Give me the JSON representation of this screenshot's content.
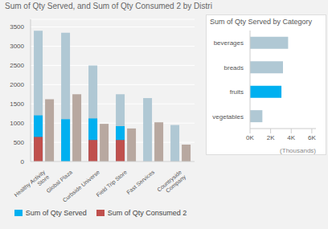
{
  "chart_data": [
    {
      "type": "bar",
      "title": "Sum of Qty Served, and Sum of Qty Consumed 2 by Distri",
      "categories": [
        "Healthy Activity\nStore",
        "Global Plaza",
        "Curbside Universe",
        "Field Trip Store",
        "Fast Services",
        "Countryside\nCompany"
      ],
      "series": [
        {
          "color": "#b0c8d4",
          "values": [
            3400,
            3350,
            2500,
            1750,
            1650,
            950
          ]
        },
        {
          "name": "Sum of Qty Served",
          "color": "#00b0f0",
          "values": [
            1200,
            1100,
            1120,
            920,
            0,
            0
          ]
        },
        {
          "name": "Sum of Qty Consumed 2",
          "color": "#c0504d",
          "values": [
            640,
            0,
            560,
            560,
            0,
            0
          ]
        },
        {
          "color": "#b8a8a0",
          "values": [
            1620,
            1750,
            980,
            860,
            1020,
            440
          ]
        }
      ],
      "ylim": [
        0,
        3700
      ],
      "yticks": [
        0,
        500,
        1000,
        1500,
        2000,
        2500,
        3000,
        3500
      ],
      "grid": true,
      "legend": "bottom"
    },
    {
      "type": "bar",
      "orientation": "horizontal",
      "title": "Sum of Qty Served by Category",
      "categories": [
        "beverages",
        "breads",
        "fruits",
        "vegetables"
      ],
      "values": [
        3700,
        3200,
        3050,
        1200
      ],
      "colors": [
        "#b0c8d4",
        "#b0c8d4",
        "#00b0f0",
        "#b0c8d4"
      ],
      "xlim": [
        0,
        6400
      ],
      "xticks": [
        {
          "value": 0,
          "label": "0K"
        },
        {
          "value": 2000,
          "label": "2K"
        },
        {
          "value": 4000,
          "label": "4K"
        },
        {
          "value": 6000,
          "label": "6K"
        }
      ],
      "xlabel": "(Thousands)",
      "grid": false
    }
  ]
}
